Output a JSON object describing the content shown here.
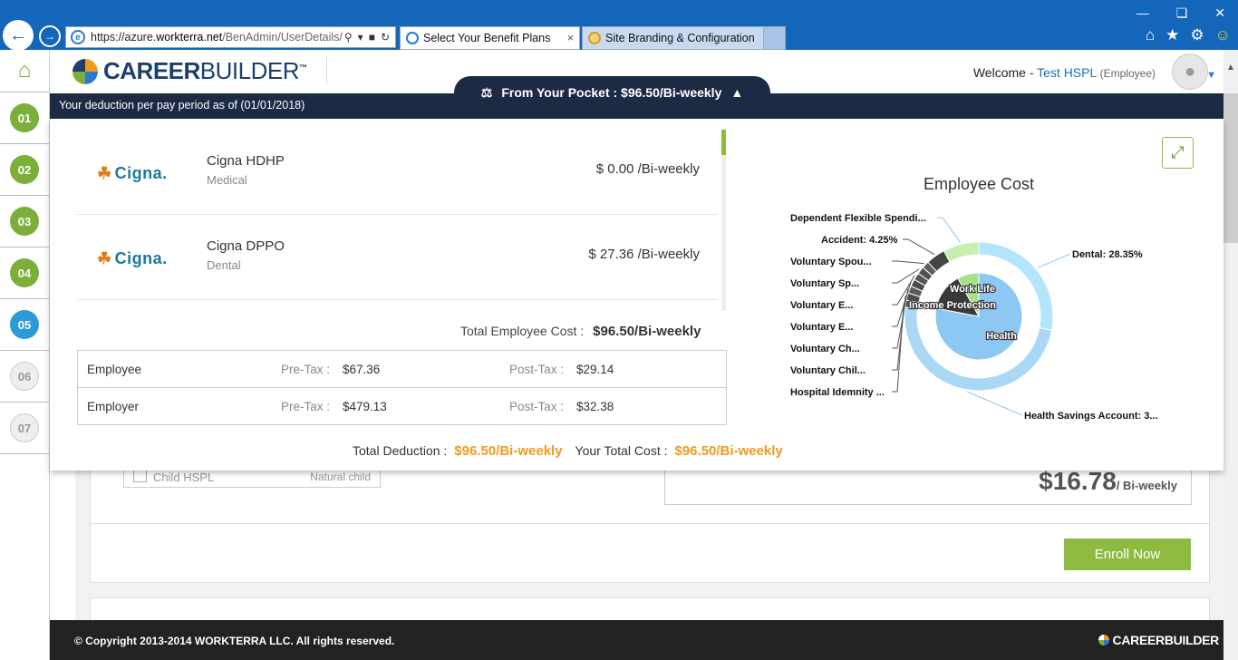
{
  "browser": {
    "url_prefix": "https://azure.",
    "url_domain": "workterra.net",
    "url_path": "/BenAdmin/UserDetails/",
    "tabs": [
      {
        "label": "Select Your Benefit Plans",
        "close": "×"
      },
      {
        "label": "Site Branding & Configuration"
      }
    ],
    "icons": [
      "back-icon",
      "forward-icon",
      "search-icon",
      "lock-icon",
      "refresh-icon",
      "home-icon",
      "star-icon",
      "gear-icon",
      "smiley-icon"
    ]
  },
  "steps": [
    "01",
    "02",
    "03",
    "04",
    "05",
    "06",
    "07"
  ],
  "header": {
    "logo_a": "CAREER",
    "logo_b": "BUILDER",
    "logo_tm": "™",
    "welcome": "Welcome - ",
    "user": "Test HSPL",
    "role": "(Employee)"
  },
  "deduction_bar": "Your deduction per pay period as of (01/01/2018)",
  "pocket": "From Your Pocket : $96.50/Bi-weekly",
  "plans": [
    {
      "carrier": "Cigna.",
      "name": "Cigna HDHP",
      "type": "Medical",
      "amount": "$ 0.00 /Bi-weekly"
    },
    {
      "carrier": "Cigna.",
      "name": "Cigna DPPO",
      "type": "Dental",
      "amount": "$ 27.36 /Bi-weekly"
    }
  ],
  "total_employee_cost_label": "Total Employee Cost :",
  "total_employee_cost": "$96.50/Bi-weekly",
  "costs": [
    {
      "who": "Employee",
      "pre_label": "Pre-Tax :",
      "pre": "$67.36",
      "post_label": "Post-Tax :",
      "post": "$29.14"
    },
    {
      "who": "Employer",
      "pre_label": "Pre-Tax :",
      "pre": "$479.13",
      "post_label": "Post-Tax :",
      "post": "$32.38"
    }
  ],
  "total_deduction_label": "Total Deduction :",
  "total_deduction": "$96.50/Bi-weekly",
  "your_total_cost_label": "Your Total Cost :",
  "your_total_cost": "$96.50/Bi-weekly",
  "chart_data": {
    "type": "pie",
    "title": "Employee Cost",
    "inner": [
      {
        "name": "Health",
        "value": 78
      },
      {
        "name": "Income Protection",
        "value": 14
      },
      {
        "name": "Work Life",
        "value": 8
      }
    ],
    "outer": [
      {
        "name": "Dental: 28.35%",
        "value": 28.35,
        "color": "#b3e5fc"
      },
      {
        "name": "Health Savings Account: 3...",
        "value": 49.65,
        "color": "#a9d8f7"
      },
      {
        "name": "Hospital Idemnity ...",
        "value": 1.6,
        "color": "#555555"
      },
      {
        "name": "Voluntary Chil...",
        "value": 1.6,
        "color": "#4d4d4d"
      },
      {
        "name": "Voluntary Ch...",
        "value": 1.6,
        "color": "#5a5a5a"
      },
      {
        "name": "Voluntary E...",
        "value": 1.6,
        "color": "#4a4a4a"
      },
      {
        "name": "Voluntary E...",
        "value": 1.6,
        "color": "#575757"
      },
      {
        "name": "Voluntary Sp...",
        "value": 1.6,
        "color": "#505050"
      },
      {
        "name": "Voluntary Spou...",
        "value": 1.6,
        "color": "#5e5e5e"
      },
      {
        "name": "Accident: 4.25%",
        "value": 4.25,
        "color": "#444444"
      },
      {
        "name": "Dependent Flexible Spendi...",
        "value": 7.9,
        "color": "#c6f0b0"
      }
    ]
  },
  "background": {
    "child_name": "Child HSPL",
    "child_relation": "Natural child",
    "price": "$16.78",
    "price_per": "/ Bi-weekly",
    "enroll": "Enroll Now"
  },
  "footer": {
    "copyright": "© Copyright 2013-2014 WORKTERRA LLC. All rights reserved.",
    "logo": "CAREERBUILDER"
  }
}
